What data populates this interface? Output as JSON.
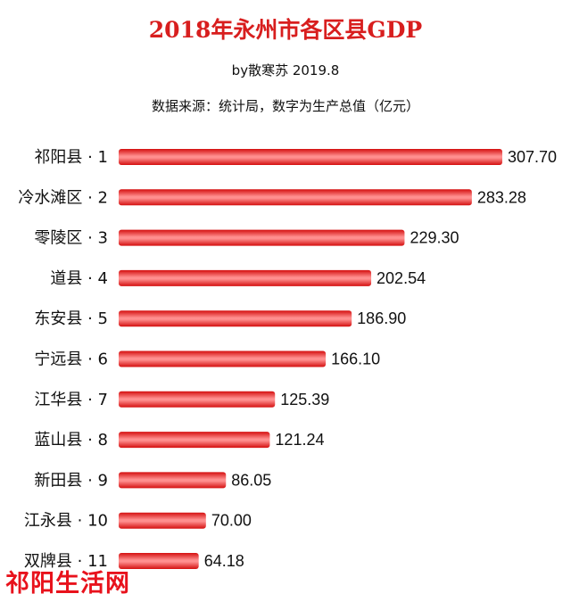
{
  "title": "2018年永州市各区县GDP",
  "byline": "by散寒苏  2019.8",
  "source_note": "数据来源：统计局，数字为生产总值（亿元）",
  "watermark": "祁阳生活网",
  "colors": {
    "title": "#d81e1e",
    "bar": "#e41515",
    "bar_highlight": "#ff9b9b"
  },
  "chart_data": {
    "type": "bar",
    "orientation": "horizontal",
    "categories": [
      "祁阳县 · 1",
      "冷水滩区 · 2",
      "零陵区 · 3",
      "道县 · 4",
      "东安县 · 5",
      "宁远县 · 6",
      "江华县 · 7",
      "蓝山县 · 8",
      "新田县 · 9",
      "江永县 · 10",
      "双牌县 · 11"
    ],
    "values": [
      307.7,
      283.28,
      229.3,
      202.54,
      186.9,
      166.1,
      125.39,
      121.24,
      86.05,
      70.0,
      64.18
    ],
    "value_labels": [
      "307.70",
      "283.28",
      "229.30",
      "202.54",
      "186.90",
      "166.10",
      "125.39",
      "121.24",
      "86.05",
      "70.00",
      "64.18"
    ],
    "title": "2018年永州市各区县GDP",
    "xlabel": "",
    "ylabel": "",
    "grid": false,
    "legend": "none"
  }
}
